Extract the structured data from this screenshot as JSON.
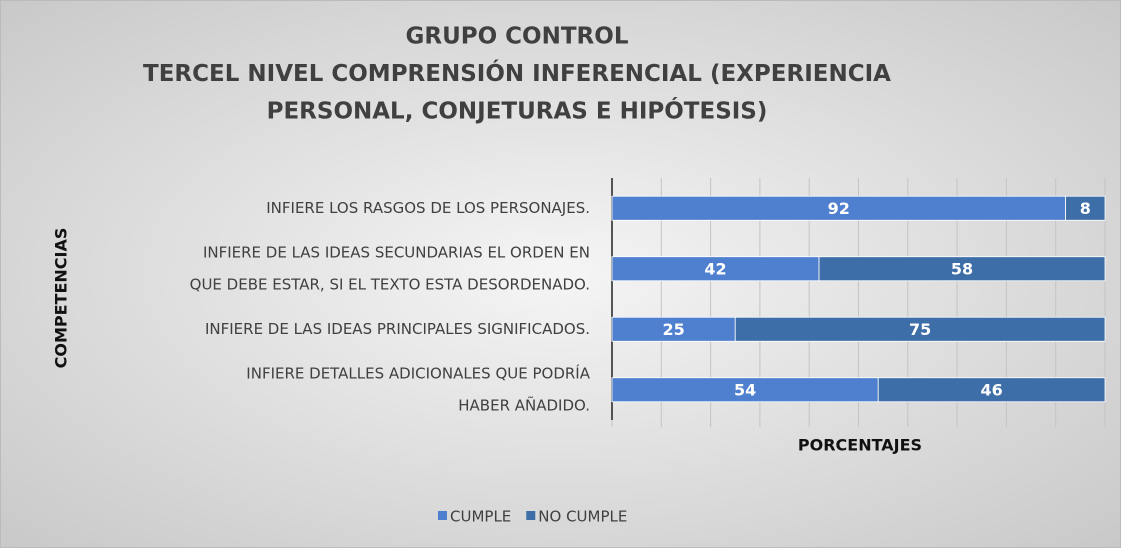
{
  "chart_data": {
    "type": "stacked-bar-horizontal",
    "title": [
      "GRUPO CONTROL",
      "TERCEL  NIVEL COMPRENSIÓN INFERENCIAL (EXPERIENCIA",
      "PERSONAL, CONJETURAS E HIPÓTESIS)"
    ],
    "xlabel": "PORCENTAJES",
    "ylabel": "COMPETENCIAS",
    "categories": [
      [
        "INFIERE LOS RASGOS DE LOS PERSONAJES."
      ],
      [
        "INFIERE DE LAS IDEAS SECUNDARIAS  EL ORDEN EN",
        "QUE DEBE ESTAR, SI EL TEXTO ESTA DESORDENADO."
      ],
      [
        "INFIERE DE LAS IDEAS PRINCIPALES SIGNIFICADOS."
      ],
      [
        "INFIERE DETALLES ADICIONALES QUE PODRÍA",
        "HABER AÑADIDO."
      ]
    ],
    "series": [
      {
        "name": "CUMPLE",
        "color": "#4f7fcf",
        "values": [
          92,
          42,
          25,
          54
        ]
      },
      {
        "name": "NO CUMPLE",
        "color": "#3d6ea8",
        "values": [
          8,
          58,
          75,
          46
        ]
      }
    ],
    "xlim": [
      0,
      100
    ],
    "xticks": [
      0,
      10,
      20,
      30,
      40,
      50,
      60,
      70,
      80,
      90,
      100
    ],
    "grid": true,
    "legend": "bottom"
  }
}
